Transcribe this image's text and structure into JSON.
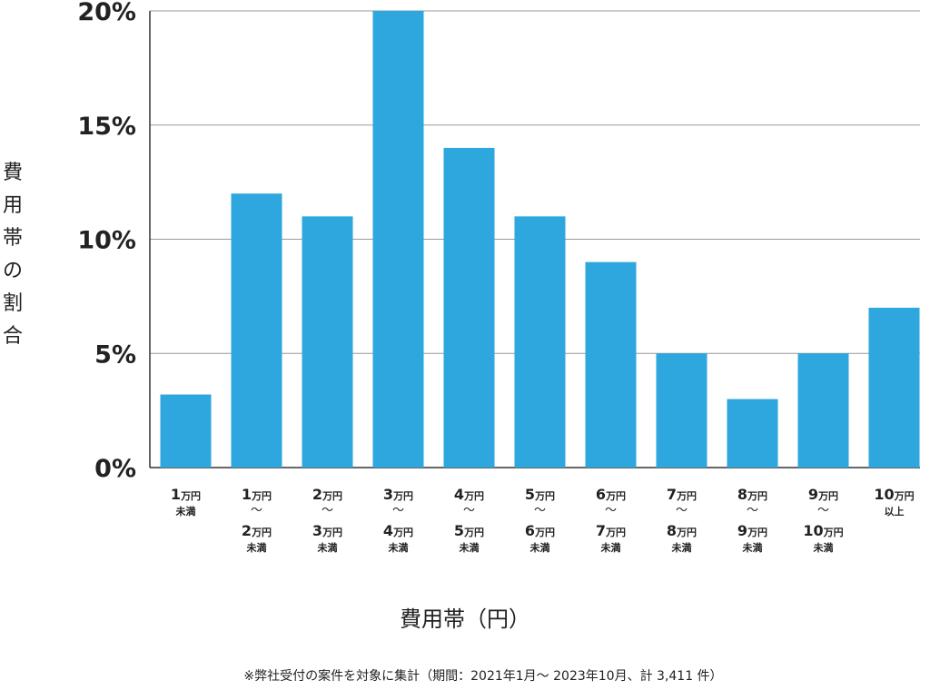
{
  "chart_data": {
    "type": "bar",
    "categories": [
      {
        "parts": [
          [
            "1",
            "万円"
          ]
        ],
        "suffix": "未満"
      },
      {
        "parts": [
          [
            "1",
            "万円"
          ],
          [
            "2",
            "万円"
          ]
        ],
        "suffix": "未満"
      },
      {
        "parts": [
          [
            "2",
            "万円"
          ],
          [
            "3",
            "万円"
          ]
        ],
        "suffix": "未満"
      },
      {
        "parts": [
          [
            "3",
            "万円"
          ],
          [
            "4",
            "万円"
          ]
        ],
        "suffix": "未満"
      },
      {
        "parts": [
          [
            "4",
            "万円"
          ],
          [
            "5",
            "万円"
          ]
        ],
        "suffix": "未満"
      },
      {
        "parts": [
          [
            "5",
            "万円"
          ],
          [
            "6",
            "万円"
          ]
        ],
        "suffix": "未満"
      },
      {
        "parts": [
          [
            "6",
            "万円"
          ],
          [
            "7",
            "万円"
          ]
        ],
        "suffix": "未満"
      },
      {
        "parts": [
          [
            "7",
            "万円"
          ],
          [
            "8",
            "万円"
          ]
        ],
        "suffix": "未満"
      },
      {
        "parts": [
          [
            "8",
            "万円"
          ],
          [
            "9",
            "万円"
          ]
        ],
        "suffix": "未満"
      },
      {
        "parts": [
          [
            "9",
            "万円"
          ],
          [
            "10",
            "万円"
          ]
        ],
        "suffix": "未満"
      },
      {
        "parts": [
          [
            "10",
            "万円"
          ]
        ],
        "suffix": "以上"
      }
    ],
    "values": [
      3.2,
      12,
      11,
      20,
      14,
      11,
      9,
      5,
      3,
      5,
      7
    ],
    "ylim": [
      0,
      20
    ],
    "yticks": [
      0,
      5,
      10,
      15,
      20
    ],
    "ytick_labels": [
      "0%",
      "5%",
      "10%",
      "15%",
      "20%"
    ],
    "ylabel": "費用帯の割合",
    "xlabel": "費用帯（円）",
    "range_separator": "〜",
    "grid": true,
    "bar_color": "#2ea6de"
  },
  "footnote": "※弊社受付の案件を対象に集計（期間：2021年1月～ 2023年10月、計 3,411 件）"
}
